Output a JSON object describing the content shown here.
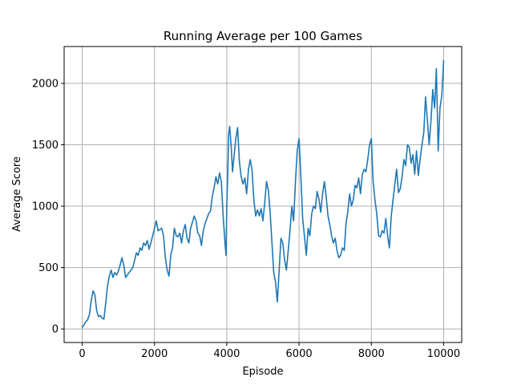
{
  "chart_data": {
    "type": "line",
    "title": "Running Average per 100 Games",
    "xlabel": "Episode",
    "ylabel": "Average Score",
    "xlim": [
      -500,
      10500
    ],
    "ylim": [
      -110,
      2300
    ],
    "xticks": [
      0,
      2000,
      4000,
      6000,
      8000,
      10000
    ],
    "yticks": [
      0,
      500,
      1000,
      1500,
      2000
    ],
    "grid": true,
    "colors": {
      "series": "#1f77b4",
      "grid": "#b0b0b0",
      "axis": "#000000"
    },
    "series": [
      {
        "points": [
          [
            0,
            10
          ],
          [
            50,
            35
          ],
          [
            100,
            60
          ],
          [
            150,
            75
          ],
          [
            200,
            120
          ],
          [
            250,
            230
          ],
          [
            300,
            310
          ],
          [
            350,
            280
          ],
          [
            400,
            150
          ],
          [
            450,
            100
          ],
          [
            500,
            110
          ],
          [
            550,
            90
          ],
          [
            600,
            80
          ],
          [
            650,
            210
          ],
          [
            700,
            350
          ],
          [
            750,
            430
          ],
          [
            800,
            480
          ],
          [
            850,
            420
          ],
          [
            900,
            460
          ],
          [
            950,
            440
          ],
          [
            1000,
            470
          ],
          [
            1050,
            520
          ],
          [
            1100,
            580
          ],
          [
            1150,
            520
          ],
          [
            1200,
            420
          ],
          [
            1250,
            440
          ],
          [
            1300,
            460
          ],
          [
            1350,
            480
          ],
          [
            1400,
            500
          ],
          [
            1450,
            560
          ],
          [
            1500,
            620
          ],
          [
            1550,
            600
          ],
          [
            1600,
            660
          ],
          [
            1650,
            640
          ],
          [
            1700,
            700
          ],
          [
            1750,
            680
          ],
          [
            1800,
            720
          ],
          [
            1850,
            650
          ],
          [
            1900,
            700
          ],
          [
            1950,
            760
          ],
          [
            2000,
            820
          ],
          [
            2050,
            880
          ],
          [
            2100,
            800
          ],
          [
            2150,
            810
          ],
          [
            2200,
            820
          ],
          [
            2250,
            760
          ],
          [
            2300,
            580
          ],
          [
            2350,
            480
          ],
          [
            2400,
            430
          ],
          [
            2450,
            600
          ],
          [
            2500,
            660
          ],
          [
            2550,
            820
          ],
          [
            2600,
            760
          ],
          [
            2650,
            750
          ],
          [
            2700,
            780
          ],
          [
            2750,
            700
          ],
          [
            2800,
            800
          ],
          [
            2850,
            850
          ],
          [
            2900,
            740
          ],
          [
            2950,
            700
          ],
          [
            3000,
            820
          ],
          [
            3050,
            870
          ],
          [
            3100,
            920
          ],
          [
            3150,
            880
          ],
          [
            3200,
            780
          ],
          [
            3250,
            760
          ],
          [
            3300,
            680
          ],
          [
            3350,
            800
          ],
          [
            3400,
            860
          ],
          [
            3450,
            900
          ],
          [
            3500,
            940
          ],
          [
            3550,
            960
          ],
          [
            3600,
            1080
          ],
          [
            3650,
            1150
          ],
          [
            3700,
            1240
          ],
          [
            3750,
            1180
          ],
          [
            3800,
            1270
          ],
          [
            3850,
            1200
          ],
          [
            3900,
            920
          ],
          [
            3950,
            700
          ],
          [
            3980,
            600
          ],
          [
            4000,
            1000
          ],
          [
            4030,
            1300
          ],
          [
            4050,
            1580
          ],
          [
            4080,
            1650
          ],
          [
            4120,
            1500
          ],
          [
            4160,
            1280
          ],
          [
            4200,
            1400
          ],
          [
            4250,
            1550
          ],
          [
            4300,
            1640
          ],
          [
            4350,
            1360
          ],
          [
            4400,
            1240
          ],
          [
            4450,
            1180
          ],
          [
            4500,
            1230
          ],
          [
            4550,
            1100
          ],
          [
            4600,
            1300
          ],
          [
            4650,
            1380
          ],
          [
            4700,
            1290
          ],
          [
            4750,
            1050
          ],
          [
            4800,
            920
          ],
          [
            4850,
            970
          ],
          [
            4900,
            920
          ],
          [
            4950,
            980
          ],
          [
            5000,
            880
          ],
          [
            5050,
            1030
          ],
          [
            5100,
            1200
          ],
          [
            5150,
            1130
          ],
          [
            5200,
            950
          ],
          [
            5250,
            700
          ],
          [
            5300,
            460
          ],
          [
            5350,
            380
          ],
          [
            5400,
            220
          ],
          [
            5450,
            480
          ],
          [
            5500,
            740
          ],
          [
            5550,
            700
          ],
          [
            5600,
            560
          ],
          [
            5650,
            480
          ],
          [
            5700,
            640
          ],
          [
            5750,
            800
          ],
          [
            5800,
            1000
          ],
          [
            5850,
            880
          ],
          [
            5900,
            1200
          ],
          [
            5950,
            1450
          ],
          [
            6000,
            1550
          ],
          [
            6050,
            1250
          ],
          [
            6100,
            900
          ],
          [
            6150,
            750
          ],
          [
            6200,
            600
          ],
          [
            6250,
            820
          ],
          [
            6300,
            760
          ],
          [
            6350,
            940
          ],
          [
            6400,
            1000
          ],
          [
            6450,
            980
          ],
          [
            6500,
            1120
          ],
          [
            6550,
            1060
          ],
          [
            6600,
            950
          ],
          [
            6650,
            1100
          ],
          [
            6700,
            1200
          ],
          [
            6750,
            1080
          ],
          [
            6800,
            920
          ],
          [
            6850,
            850
          ],
          [
            6900,
            760
          ],
          [
            6950,
            700
          ],
          [
            7000,
            740
          ],
          [
            7050,
            640
          ],
          [
            7100,
            580
          ],
          [
            7150,
            600
          ],
          [
            7200,
            660
          ],
          [
            7250,
            640
          ],
          [
            7300,
            860
          ],
          [
            7350,
            960
          ],
          [
            7400,
            1100
          ],
          [
            7450,
            1000
          ],
          [
            7500,
            1050
          ],
          [
            7550,
            1170
          ],
          [
            7600,
            1150
          ],
          [
            7650,
            1230
          ],
          [
            7700,
            1100
          ],
          [
            7750,
            1260
          ],
          [
            7800,
            1300
          ],
          [
            7850,
            1280
          ],
          [
            7900,
            1380
          ],
          [
            7950,
            1500
          ],
          [
            8000,
            1550
          ],
          [
            8050,
            1200
          ],
          [
            8100,
            1050
          ],
          [
            8150,
            940
          ],
          [
            8200,
            760
          ],
          [
            8250,
            750
          ],
          [
            8300,
            800
          ],
          [
            8350,
            780
          ],
          [
            8400,
            900
          ],
          [
            8450,
            760
          ],
          [
            8500,
            660
          ],
          [
            8550,
            920
          ],
          [
            8600,
            1050
          ],
          [
            8650,
            1180
          ],
          [
            8700,
            1300
          ],
          [
            8750,
            1110
          ],
          [
            8800,
            1140
          ],
          [
            8850,
            1240
          ],
          [
            8900,
            1380
          ],
          [
            8950,
            1330
          ],
          [
            9000,
            1500
          ],
          [
            9050,
            1480
          ],
          [
            9100,
            1350
          ],
          [
            9150,
            1420
          ],
          [
            9200,
            1260
          ],
          [
            9250,
            1450
          ],
          [
            9300,
            1250
          ],
          [
            9350,
            1380
          ],
          [
            9400,
            1500
          ],
          [
            9450,
            1600
          ],
          [
            9500,
            1890
          ],
          [
            9550,
            1700
          ],
          [
            9600,
            1500
          ],
          [
            9650,
            1700
          ],
          [
            9700,
            1950
          ],
          [
            9750,
            1800
          ],
          [
            9800,
            2120
          ],
          [
            9850,
            1450
          ],
          [
            9900,
            1800
          ],
          [
            9950,
            1900
          ],
          [
            10000,
            2190
          ]
        ]
      }
    ]
  }
}
